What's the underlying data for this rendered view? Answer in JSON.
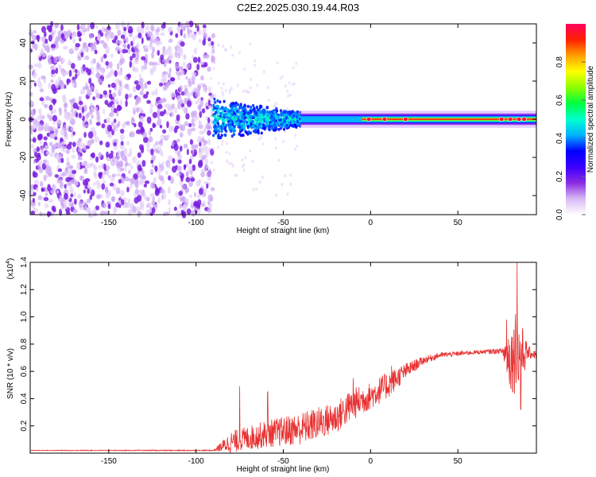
{
  "title": "C2E2.2025.030.19.44.R03",
  "chart_data": [
    {
      "type": "heatmap",
      "xlabel": "Height of straight line (km)",
      "ylabel": "Frequency (Hz)",
      "xlim": [
        -195,
        95
      ],
      "ylim": [
        -50,
        50
      ],
      "xticks": [
        -150,
        -100,
        -50,
        0,
        50
      ],
      "yticks": [
        -40,
        -20,
        0,
        20,
        40
      ],
      "colorbar": {
        "label": "Normalized spectral amplitude",
        "range": [
          0.0,
          1.0
        ],
        "ticks": [
          0.0,
          0.2,
          0.4,
          0.6,
          0.8
        ],
        "colors": [
          "#ffffff",
          "#d9b8f5",
          "#8a2be2",
          "#3a00ff",
          "#0000ff",
          "#00b4ff",
          "#00ffd0",
          "#00ff40",
          "#8cff00",
          "#ffff00",
          "#ffa000",
          "#ff2000",
          "#ff0060"
        ]
      },
      "regions": [
        {
          "x_range": [
            -195,
            -90
          ],
          "freq_range": [
            -50,
            50
          ],
          "amplitude": [
            0.05,
            0.15
          ],
          "note_pattern": "noise"
        },
        {
          "x_range": [
            -90,
            -40
          ],
          "freq_range": [
            -10,
            10
          ],
          "amplitude": [
            0.15,
            0.35
          ],
          "note_pattern": "widening"
        },
        {
          "x_range": [
            -40,
            95
          ],
          "freq_range": [
            -3,
            3
          ],
          "amplitude": [
            0.35,
            0.95
          ],
          "note_pattern": "narrow-band"
        }
      ]
    },
    {
      "type": "line",
      "xlabel": "Height of straight line (km)",
      "ylabel": "SNR (10 * v/v)",
      "ymultiplier": "(x10",
      "ymultiplier_exp": "4",
      "xlim": [
        -195,
        95
      ],
      "ylim": [
        0,
        1.4
      ],
      "xticks": [
        -150,
        -100,
        -50,
        0,
        50
      ],
      "yticks": [
        0.2,
        0.4,
        0.6,
        0.8,
        1.0,
        1.2,
        1.4
      ],
      "color": "#e83030",
      "trend_x": [
        -195,
        -90,
        -80,
        -60,
        -40,
        -20,
        -10,
        0,
        10,
        20,
        30,
        40,
        60,
        75,
        80,
        85,
        90,
        95
      ],
      "trend_y": [
        0.02,
        0.02,
        0.08,
        0.14,
        0.18,
        0.26,
        0.36,
        0.42,
        0.5,
        0.6,
        0.68,
        0.72,
        0.74,
        0.75,
        0.7,
        0.72,
        0.74,
        0.72
      ],
      "noise_y": [
        0.002,
        0.004,
        0.08,
        0.1,
        0.12,
        0.12,
        0.12,
        0.1,
        0.1,
        0.06,
        0.03,
        0.02,
        0.015,
        0.02,
        0.25,
        0.3,
        0.05,
        0.03
      ],
      "spikes": [
        {
          "x": -75,
          "y": 0.49
        },
        {
          "x": -59,
          "y": 0.45
        },
        {
          "x": -10,
          "y": 0.55
        },
        {
          "x": 12,
          "y": 0.64
        },
        {
          "x": 78,
          "y": 0.98
        },
        {
          "x": 83,
          "y": 1.02
        },
        {
          "x": 84,
          "y": 1.4
        },
        {
          "x": 86,
          "y": 0.32
        }
      ]
    }
  ]
}
